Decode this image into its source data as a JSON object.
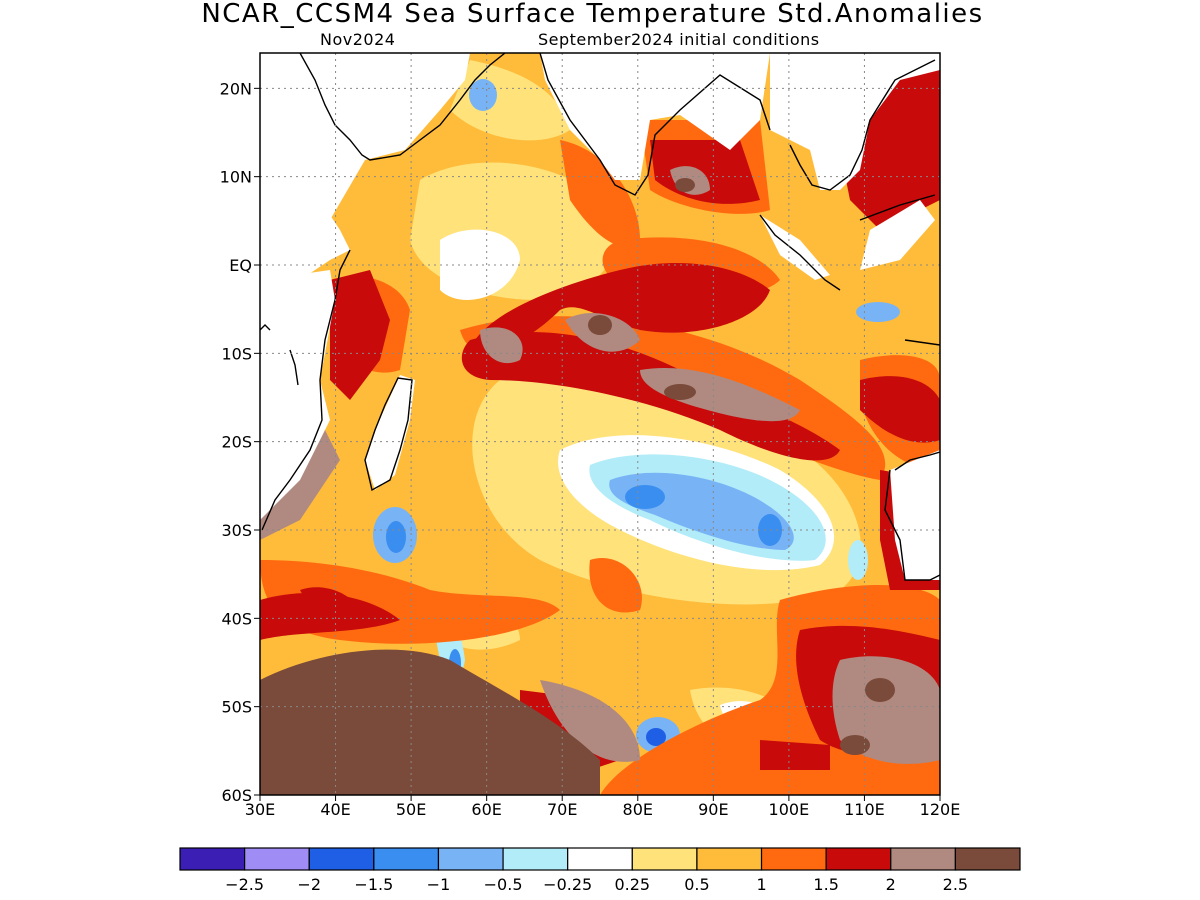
{
  "title": "NCAR_CCSM4 Sea Surface Temperature Std.Anomalies",
  "subtitle_left": "Nov2024",
  "subtitle_right": "September2024 initial conditions",
  "axes": {
    "lat_labels": [
      "20N",
      "10N",
      "EQ",
      "10S",
      "20S",
      "30S",
      "40S",
      "50S",
      "60S"
    ],
    "lon_labels": [
      "30E",
      "40E",
      "50E",
      "60E",
      "70E",
      "80E",
      "90E",
      "100E",
      "110E",
      "120E"
    ],
    "lon_range": [
      30,
      120
    ],
    "lat_range": [
      -60,
      24
    ]
  },
  "colorbar": {
    "colors": [
      "#3b1fb5",
      "#9f8cf5",
      "#1f5fe6",
      "#3a8ef0",
      "#78b4f5",
      "#b2ecf8",
      "#ffffff",
      "#ffe27a",
      "#ffbb3a",
      "#ff6a10",
      "#c80a0a",
      "#b08a80",
      "#7a4a3a"
    ],
    "tick_labels": [
      "−2.5",
      "−2",
      "−1.5",
      "−1",
      "−0.5",
      "−0.25",
      "0.25",
      "0.5",
      "1",
      "1.5",
      "2",
      "2.5"
    ]
  }
}
